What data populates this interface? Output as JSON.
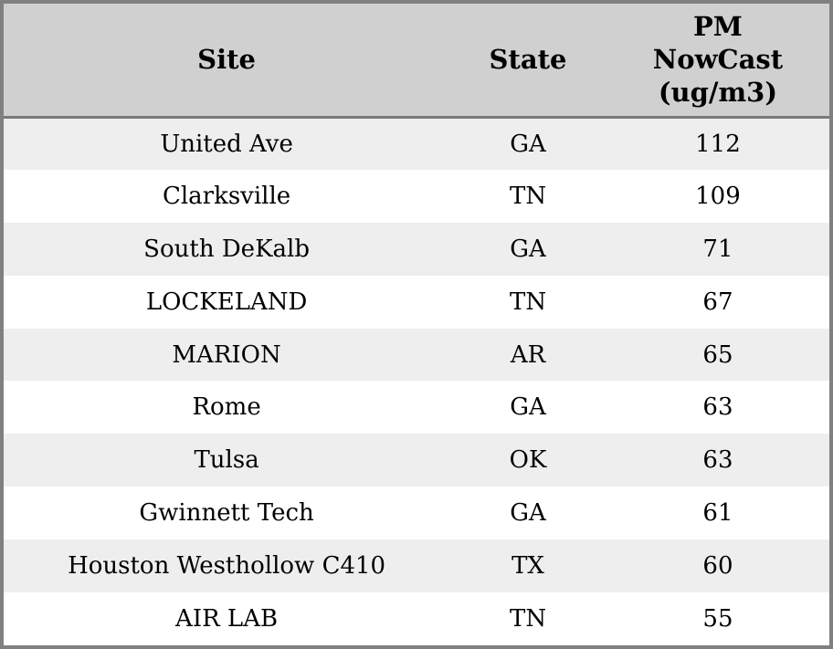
{
  "table": {
    "columns": {
      "site_label": "Site",
      "state_label": "State",
      "pm_label": "PM\nNowCast\n(ug/m3)"
    },
    "rows": [
      {
        "site": "United Ave",
        "state": "GA",
        "value": "112"
      },
      {
        "site": "Clarksville",
        "state": "TN",
        "value": "109"
      },
      {
        "site": "South DeKalb",
        "state": "GA",
        "value": "71"
      },
      {
        "site": "LOCKELAND",
        "state": "TN",
        "value": "67"
      },
      {
        "site": "MARION",
        "state": "AR",
        "value": "65"
      },
      {
        "site": "Rome",
        "state": "GA",
        "value": "63"
      },
      {
        "site": "Tulsa",
        "state": "OK",
        "value": "63"
      },
      {
        "site": "Gwinnett Tech",
        "state": "GA",
        "value": "61"
      },
      {
        "site": "Houston Westhollow C410",
        "state": "TX",
        "value": "60"
      },
      {
        "site": "AIR LAB",
        "state": "TN",
        "value": "55"
      }
    ],
    "colors": {
      "header_bg": "#d0d0d0",
      "stripe_bg": "#eeeeee",
      "row_bg": "#ffffff",
      "border": "#808080",
      "header_separator": "#7a7a7a",
      "text": "#000000"
    }
  },
  "chart_data": {
    "type": "table",
    "title": "",
    "columns": [
      "Site",
      "State",
      "PM NowCast (ug/m3)"
    ],
    "rows": [
      [
        "United Ave",
        "GA",
        112
      ],
      [
        "Clarksville",
        "TN",
        109
      ],
      [
        "South DeKalb",
        "GA",
        71
      ],
      [
        "LOCKELAND",
        "TN",
        67
      ],
      [
        "MARION",
        "AR",
        65
      ],
      [
        "Rome",
        "GA",
        63
      ],
      [
        "Tulsa",
        "OK",
        63
      ],
      [
        "Gwinnett Tech",
        "GA",
        61
      ],
      [
        "Houston Westhollow C410",
        "TX",
        60
      ],
      [
        "AIR LAB",
        "TN",
        55
      ]
    ]
  }
}
